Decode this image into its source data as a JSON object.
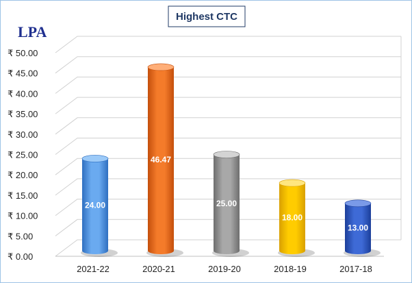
{
  "chart_data": {
    "type": "bar",
    "title": "Highest CTC",
    "unit_label": "LPA",
    "categories": [
      "2021-22",
      "2020-21",
      "2019-20",
      "2018-19",
      "2017-18"
    ],
    "values": [
      24.0,
      46.47,
      25.0,
      18.0,
      13.0
    ],
    "value_labels": [
      "24.00",
      "46.47",
      "25.00",
      "18.00",
      "13.00"
    ],
    "yticks": [
      "₹ 0.00",
      "₹ 5.00",
      "₹ 10.00",
      "₹ 15.00",
      "₹ 20.00",
      "₹ 25.00",
      "₹ 30.00",
      "₹ 35.00",
      "₹ 40.00",
      "₹ 45.00",
      "₹ 50.00"
    ],
    "ylim": [
      0,
      50
    ],
    "grid": true,
    "legend": "none",
    "colors": {
      "2021-22": [
        "#2f6fc0",
        "#6aaaf0",
        "#9ccaf8"
      ],
      "2020-21": [
        "#c44f0c",
        "#f47b2a",
        "#ffae78"
      ],
      "2019-20": [
        "#6e6e6e",
        "#a8a8a8",
        "#d4d4d4"
      ],
      "2018-19": [
        "#d9a000",
        "#ffcc00",
        "#ffe680"
      ],
      "2017-18": [
        "#1c3f9a",
        "#3e6ad6",
        "#7a9ae8"
      ]
    }
  }
}
